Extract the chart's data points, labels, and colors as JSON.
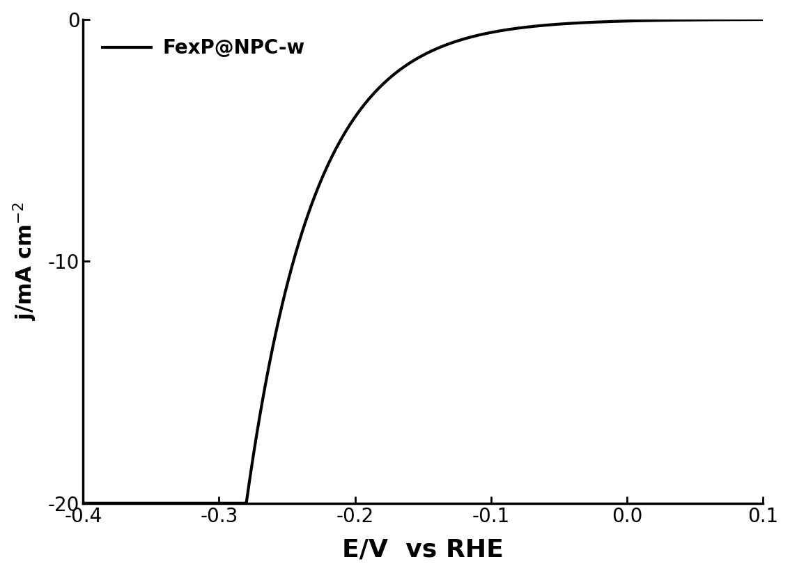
{
  "xlabel": "E/V  vs RHE",
  "xlim": [
    -0.4,
    0.1
  ],
  "ylim": [
    -20,
    0
  ],
  "xticks": [
    -0.4,
    -0.3,
    -0.2,
    -0.1,
    0.0,
    0.1
  ],
  "yticks": [
    -20,
    -10,
    0
  ],
  "legend_label": "FexP@NPC-w",
  "line_color": "#000000",
  "line_width": 3.0,
  "background_color": "#ffffff",
  "xlabel_fontsize": 26,
  "ylabel_fontsize": 22,
  "tick_fontsize": 20,
  "legend_fontsize": 20
}
